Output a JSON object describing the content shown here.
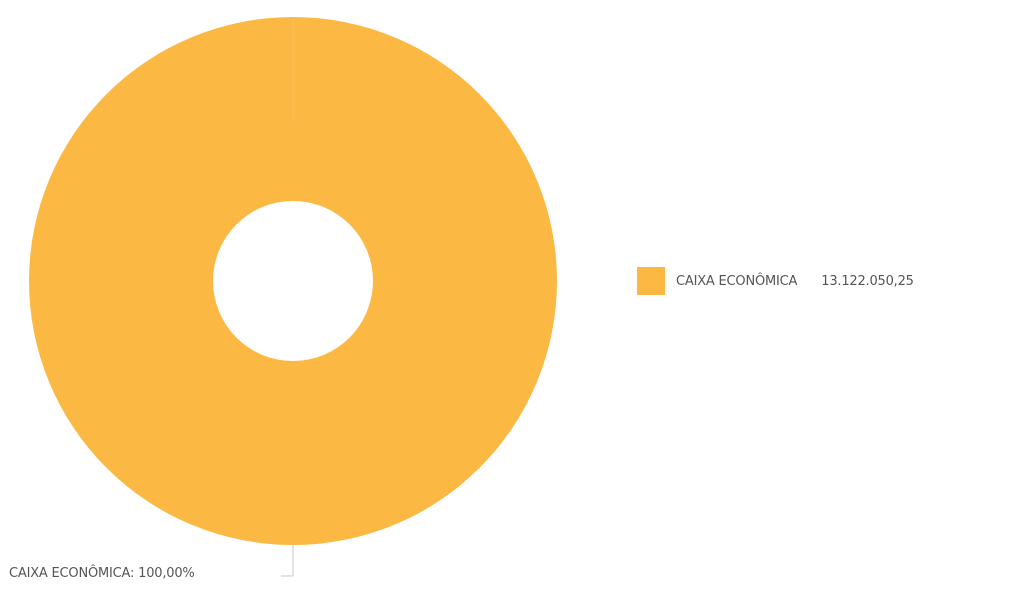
{
  "chart_data": {
    "type": "pie",
    "categories": [
      "CAIXA ECONÔMICA"
    ],
    "values": [
      13122050.25
    ],
    "value_labels": [
      "13.122.050,25"
    ],
    "percentage_labels": [
      "CAIXA ECONÔMICA: 100,00%"
    ],
    "percentages": [
      100
    ],
    "colors": [
      "#fbb843"
    ],
    "legend_position": "right",
    "donut": true
  }
}
